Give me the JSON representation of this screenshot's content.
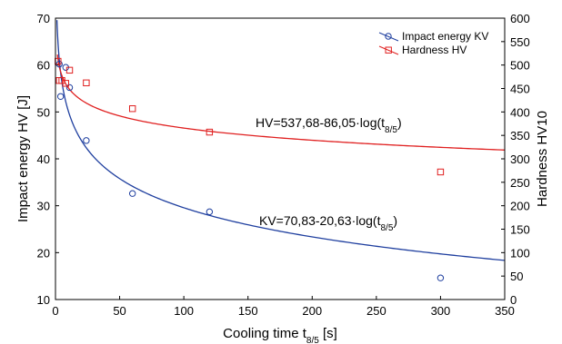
{
  "chart_data": {
    "type": "scatter",
    "x": {
      "label_main": "Cooling time t",
      "label_sub": "8/5",
      "label_unit": " [s]",
      "lim": [
        0,
        350
      ],
      "ticks": [
        0,
        50,
        100,
        150,
        200,
        250,
        300,
        350
      ]
    },
    "y_left": {
      "label": "Impact energy HV [J]",
      "lim": [
        10,
        70
      ],
      "ticks": [
        10,
        20,
        30,
        40,
        50,
        60,
        70
      ]
    },
    "y_right": {
      "label": "Hardness HV10",
      "lim": [
        0,
        600
      ],
      "ticks": [
        0,
        50,
        100,
        150,
        200,
        250,
        300,
        350,
        400,
        450,
        500,
        550,
        600
      ]
    },
    "grid": false,
    "legend_position": "top-right",
    "series": [
      {
        "name": "Impact energy KV",
        "axis": "left",
        "marker": "circle",
        "color": "#1f3f9f",
        "points": [
          [
            3,
            60.2
          ],
          [
            4,
            53.3
          ],
          [
            8,
            59.5
          ],
          [
            11,
            55.2
          ],
          [
            24,
            43.9
          ],
          [
            60,
            32.6
          ],
          [
            120,
            28.7
          ],
          [
            300,
            14.6
          ]
        ]
      },
      {
        "name": "Hardness HV",
        "axis": "right",
        "marker": "square",
        "color": "#e02020",
        "points": [
          [
            2,
            508
          ],
          [
            3,
            467
          ],
          [
            5,
            467
          ],
          [
            8,
            461
          ],
          [
            11,
            489
          ],
          [
            24,
            462
          ],
          [
            60,
            407
          ],
          [
            120,
            357
          ],
          [
            300,
            272
          ]
        ]
      }
    ],
    "fits": [
      {
        "series": "Impact energy KV",
        "axis": "left",
        "color": "#1f3f9f",
        "a": 70.83,
        "b": 20.63,
        "x_start": 1.15,
        "eq_prefix": "KV=70,83-20,63·log(t",
        "eq_sub": "8/5",
        "eq_suffix": ")"
      },
      {
        "series": "Hardness HV",
        "axis": "right",
        "color": "#e02020",
        "a": 537.68,
        "b": 86.05,
        "x_start": 1.5,
        "eq_prefix": "HV=537,68-86,05·log(t",
        "eq_sub": "8/5",
        "eq_suffix": ")"
      }
    ]
  }
}
